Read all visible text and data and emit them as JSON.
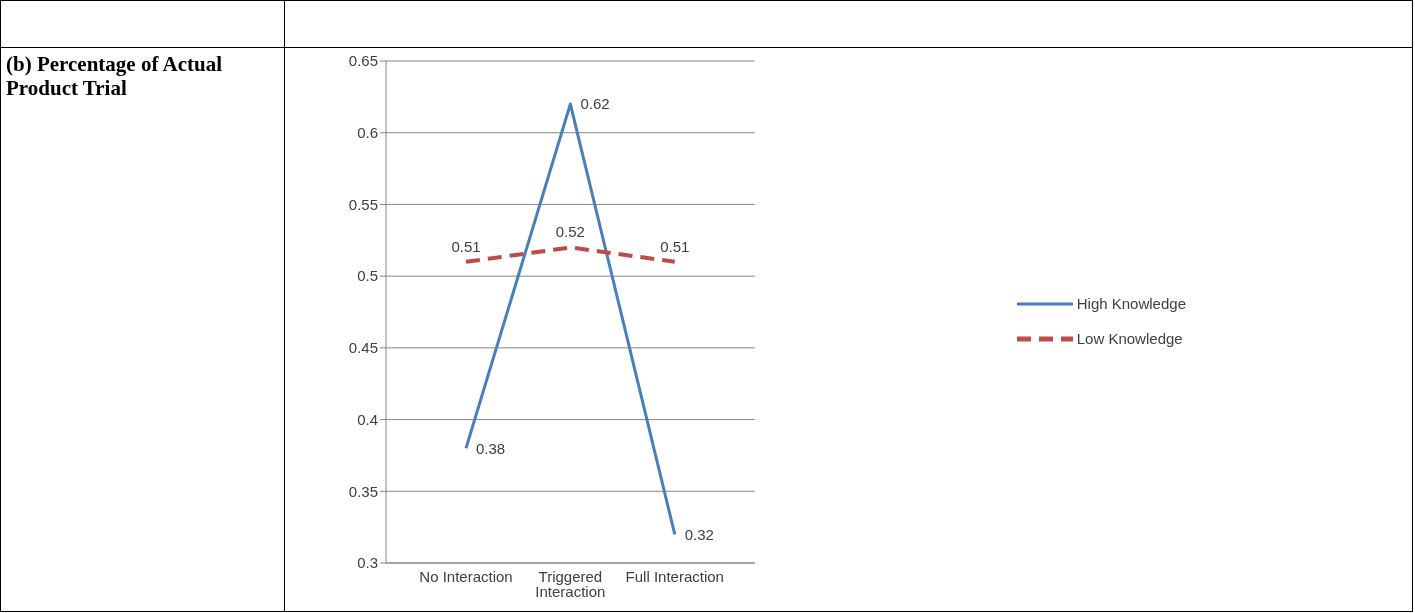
{
  "chart_data": {
    "type": "line",
    "title": "(b) Percentage of Actual Product Trial",
    "categories": [
      "No Interaction",
      "Triggered Interaction",
      "Full Interaction"
    ],
    "series": [
      {
        "name": "High Knowledge",
        "color": "#4a7ebb",
        "values": [
          0.38,
          0.62,
          0.32
        ],
        "line_style": "solid"
      },
      {
        "name": "Low Knowledge",
        "color": "#be4b48",
        "values": [
          0.51,
          0.52,
          0.51
        ],
        "line_style": "dashed"
      }
    ],
    "ylim": [
      0.3,
      0.65
    ],
    "yticks": [
      0.3,
      0.35,
      0.4,
      0.45,
      0.5,
      0.55,
      0.6,
      0.65
    ],
    "grid": "y",
    "legend": "right",
    "marker": "none",
    "data_labels": true
  }
}
